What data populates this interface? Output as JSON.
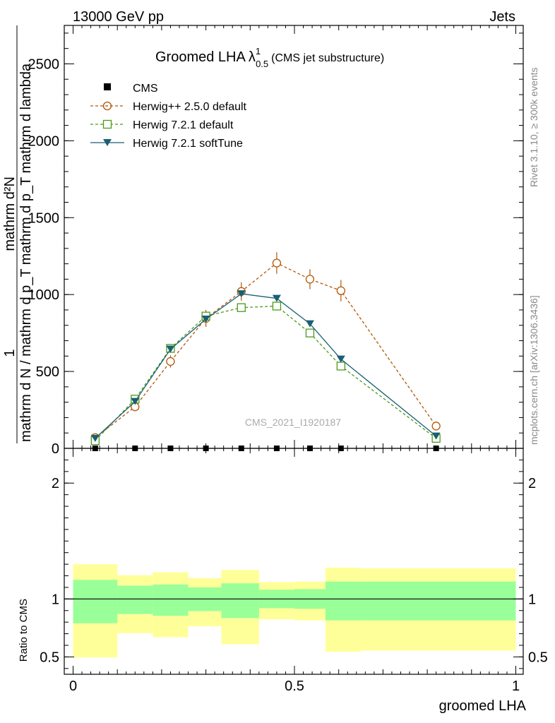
{
  "header": {
    "left": "13000 GeV pp",
    "right": "Jets"
  },
  "side": {
    "rivet": "Rivet 3.1.10, ≥ 300k events",
    "mcplots": "mcplots.cern.ch [arXiv:1306.3436]"
  },
  "chart_data": [
    {
      "type": "line",
      "title": "Groomed LHA",
      "title_symbol": "λ",
      "title_sup": "1",
      "title_sub": "0.5",
      "title_note": "(CMS jet substructure)",
      "watermark": "CMS_2021_I1920187",
      "ylabel_lines": [
        "mathrm d²N",
        "1",
        "mathrm d N / mathrm d p_T mathrm d p_T mathrm d lambda"
      ],
      "ylim": [
        0,
        2750
      ],
      "yticks": [
        0,
        500,
        1000,
        1500,
        2000,
        2500
      ],
      "ytick_labels": [
        "0",
        "500",
        "1000",
        "1500",
        "2000",
        "2500"
      ],
      "xlim": [
        -0.02,
        1.0
      ],
      "x": [
        0.05,
        0.14,
        0.22,
        0.3,
        0.38,
        0.46,
        0.535,
        0.605,
        0.82
      ],
      "series": [
        {
          "name": "CMS",
          "style": "data",
          "color": "#000000",
          "values": [
            0,
            0,
            0,
            0,
            0,
            0,
            0,
            0,
            0
          ]
        },
        {
          "name": "Herwig++ 2.5.0 default",
          "style": "circle-dashed",
          "color": "#b35806",
          "values": [
            70,
            270,
            565,
            845,
            1020,
            1205,
            1100,
            1025,
            145
          ],
          "errors": [
            15,
            25,
            40,
            55,
            60,
            70,
            65,
            70,
            15
          ]
        },
        {
          "name": "Herwig 7.2.1 default",
          "style": "square-dashed",
          "color": "#4a9a1a",
          "values": [
            50,
            320,
            650,
            860,
            915,
            925,
            750,
            535,
            65
          ],
          "errors": [
            5,
            10,
            15,
            20,
            20,
            20,
            15,
            15,
            5
          ]
        },
        {
          "name": "Herwig 7.2.1 softTune",
          "style": "triangle-solid",
          "color": "#1a5f73",
          "values": [
            65,
            305,
            645,
            840,
            1005,
            975,
            810,
            580,
            80
          ],
          "errors": [
            5,
            10,
            15,
            20,
            20,
            20,
            15,
            15,
            5
          ]
        }
      ]
    },
    {
      "type": "area",
      "ylabel": "Ratio to CMS",
      "xlabel": "groomed LHA",
      "ylim": [
        0.35,
        2.3
      ],
      "yticks": [
        0.5,
        1,
        2
      ],
      "ytick_labels": [
        "0.5",
        "1",
        "2"
      ],
      "xticks": [
        0,
        0.5,
        1
      ],
      "xtick_labels": [
        "0",
        "0.5",
        "1"
      ],
      "bin_edges": [
        0.0,
        0.1,
        0.18,
        0.26,
        0.335,
        0.42,
        0.5,
        0.57,
        0.65,
        1.0
      ],
      "stat_band": [
        [
          0.79,
          1.165
        ],
        [
          0.87,
          1.115
        ],
        [
          0.855,
          1.125
        ],
        [
          0.895,
          1.1
        ],
        [
          0.835,
          1.135
        ],
        [
          0.92,
          1.08
        ],
        [
          0.915,
          1.085
        ],
        [
          0.815,
          1.15
        ],
        [
          0.815,
          1.15
        ]
      ],
      "total_band": [
        [
          0.495,
          1.3
        ],
        [
          0.705,
          1.205
        ],
        [
          0.67,
          1.23
        ],
        [
          0.765,
          1.18
        ],
        [
          0.61,
          1.25
        ],
        [
          0.825,
          1.145
        ],
        [
          0.815,
          1.15
        ],
        [
          0.545,
          1.27
        ],
        [
          0.555,
          1.265
        ]
      ],
      "stat_color": "#99ff99",
      "total_color": "#ffff99"
    }
  ]
}
